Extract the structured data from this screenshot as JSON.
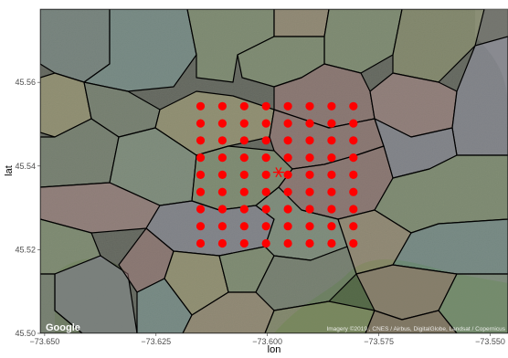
{
  "map": {
    "provider_logo": "Google",
    "attribution": "Imagery ©2019 , CNES / Airbus, DigitalGlobe, Landsat / Copernicus",
    "basemap": "satellite",
    "palette": {
      "point": "#ff0000",
      "polygon_stroke": "#000000",
      "panel_border": "#333333"
    },
    "polygon_fills": [
      "#b98a8a",
      "#8fb6b3",
      "#c8c08a",
      "#9fb88a",
      "#c9b38f",
      "#a7a7bf",
      "#c79a9a",
      "#9fb9a0"
    ]
  },
  "chart_data": {
    "type": "scatter",
    "xlabel": "lon",
    "ylabel": "lat",
    "xlim": [
      -73.651,
      -73.546
    ],
    "ylim": [
      45.5,
      45.5775
    ],
    "xticks": [
      -73.65,
      -73.625,
      -73.6,
      -73.575,
      -73.55
    ],
    "xtick_labels": [
      "−73.650",
      "−73.625",
      "−73.600",
      "−73.575",
      "−73.550"
    ],
    "yticks": [
      45.5,
      45.52,
      45.54,
      45.56
    ],
    "ytick_labels": [
      "45.50",
      "45.52",
      "45.54",
      "45.56"
    ],
    "grid": {
      "lon": [
        -73.615,
        -73.6101,
        -73.6052,
        -73.6003,
        -73.5954,
        -73.5905,
        -73.5856,
        -73.5807
      ],
      "lat": [
        45.5215,
        45.5256,
        45.5297,
        45.5338,
        45.5379,
        45.542,
        45.5461,
        45.5502,
        45.5543
      ]
    },
    "center": {
      "lon": -73.5975,
      "lat": 45.5385
    },
    "point_color": "#ff0000",
    "point_marker": "circle",
    "center_marker": "asterisk"
  }
}
